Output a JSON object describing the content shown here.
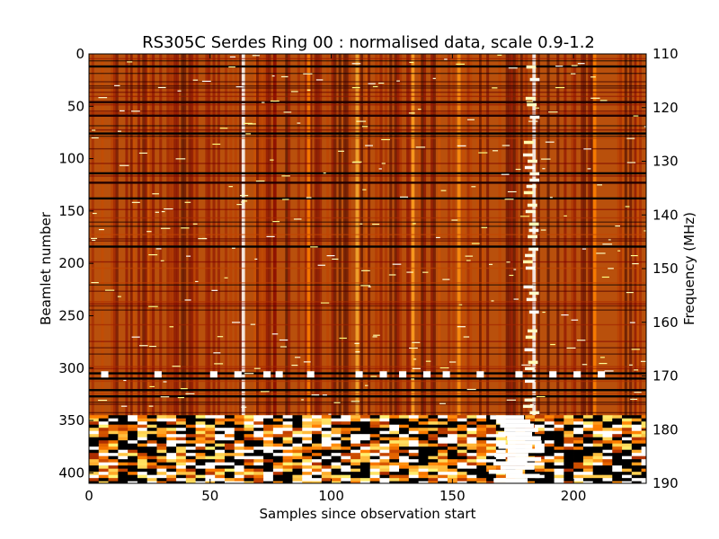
{
  "chart_data": {
    "type": "heatmap",
    "title": "RS305C Serdes Ring 00 : normalised data, scale 0.9-1.2",
    "xlabel": "Samples since observation start",
    "ylabel": "Beamlet number",
    "y2label": "Frequency (MHz)",
    "xlim": [
      0,
      230
    ],
    "ylim": [
      0,
      410
    ],
    "y2lim": [
      110,
      190
    ],
    "color_scale": [
      0.9,
      1.2
    ],
    "colormap": "afmhot",
    "x_ticks": [
      {
        "value": 0,
        "label": "0"
      },
      {
        "value": 50,
        "label": "50"
      },
      {
        "value": 100,
        "label": "100"
      },
      {
        "value": 150,
        "label": "150"
      },
      {
        "value": 200,
        "label": "200"
      }
    ],
    "y_ticks": [
      {
        "value": 0,
        "label": "0"
      },
      {
        "value": 50,
        "label": "50"
      },
      {
        "value": 100,
        "label": "100"
      },
      {
        "value": 150,
        "label": "150"
      },
      {
        "value": 200,
        "label": "200"
      },
      {
        "value": 250,
        "label": "250"
      },
      {
        "value": 300,
        "label": "300"
      },
      {
        "value": 350,
        "label": "350"
      },
      {
        "value": 400,
        "label": "400"
      }
    ],
    "y2_ticks": [
      {
        "value": 110,
        "label": "110"
      },
      {
        "value": 120,
        "label": "120"
      },
      {
        "value": 130,
        "label": "130"
      },
      {
        "value": 140,
        "label": "140"
      },
      {
        "value": 150,
        "label": "150"
      },
      {
        "value": 160,
        "label": "160"
      },
      {
        "value": 170,
        "label": "170"
      },
      {
        "value": 180,
        "label": "180"
      },
      {
        "value": 190,
        "label": "190"
      }
    ],
    "bright_columns": [
      {
        "x": 63,
        "level": 1.2
      },
      {
        "x": 76,
        "level": 0.98
      },
      {
        "x": 90,
        "level": 1.05
      },
      {
        "x": 110,
        "level": 1.08
      },
      {
        "x": 133,
        "level": 1.07
      },
      {
        "x": 152,
        "level": 1.06
      },
      {
        "x": 183,
        "level": 1.2
      },
      {
        "x": 208,
        "level": 1.05
      }
    ],
    "dark_rows": [
      {
        "beamlet": 11,
        "level": 0.9
      },
      {
        "beamlet": 45,
        "level": 0.92
      },
      {
        "beamlet": 58,
        "level": 0.92
      },
      {
        "beamlet": 75,
        "level": 0.9
      },
      {
        "beamlet": 113,
        "level": 0.9
      },
      {
        "beamlet": 122,
        "level": 0.92
      },
      {
        "beamlet": 137,
        "level": 0.9
      },
      {
        "beamlet": 183,
        "level": 0.9
      },
      {
        "beamlet": 304,
        "level": 0.9
      },
      {
        "beamlet": 309,
        "level": 0.9
      },
      {
        "beamlet": 320,
        "level": 0.9
      },
      {
        "beamlet": 326,
        "level": 0.9
      }
    ],
    "saturated_band": {
      "beamlet_start": 345,
      "beamlet_end": 410
    }
  }
}
